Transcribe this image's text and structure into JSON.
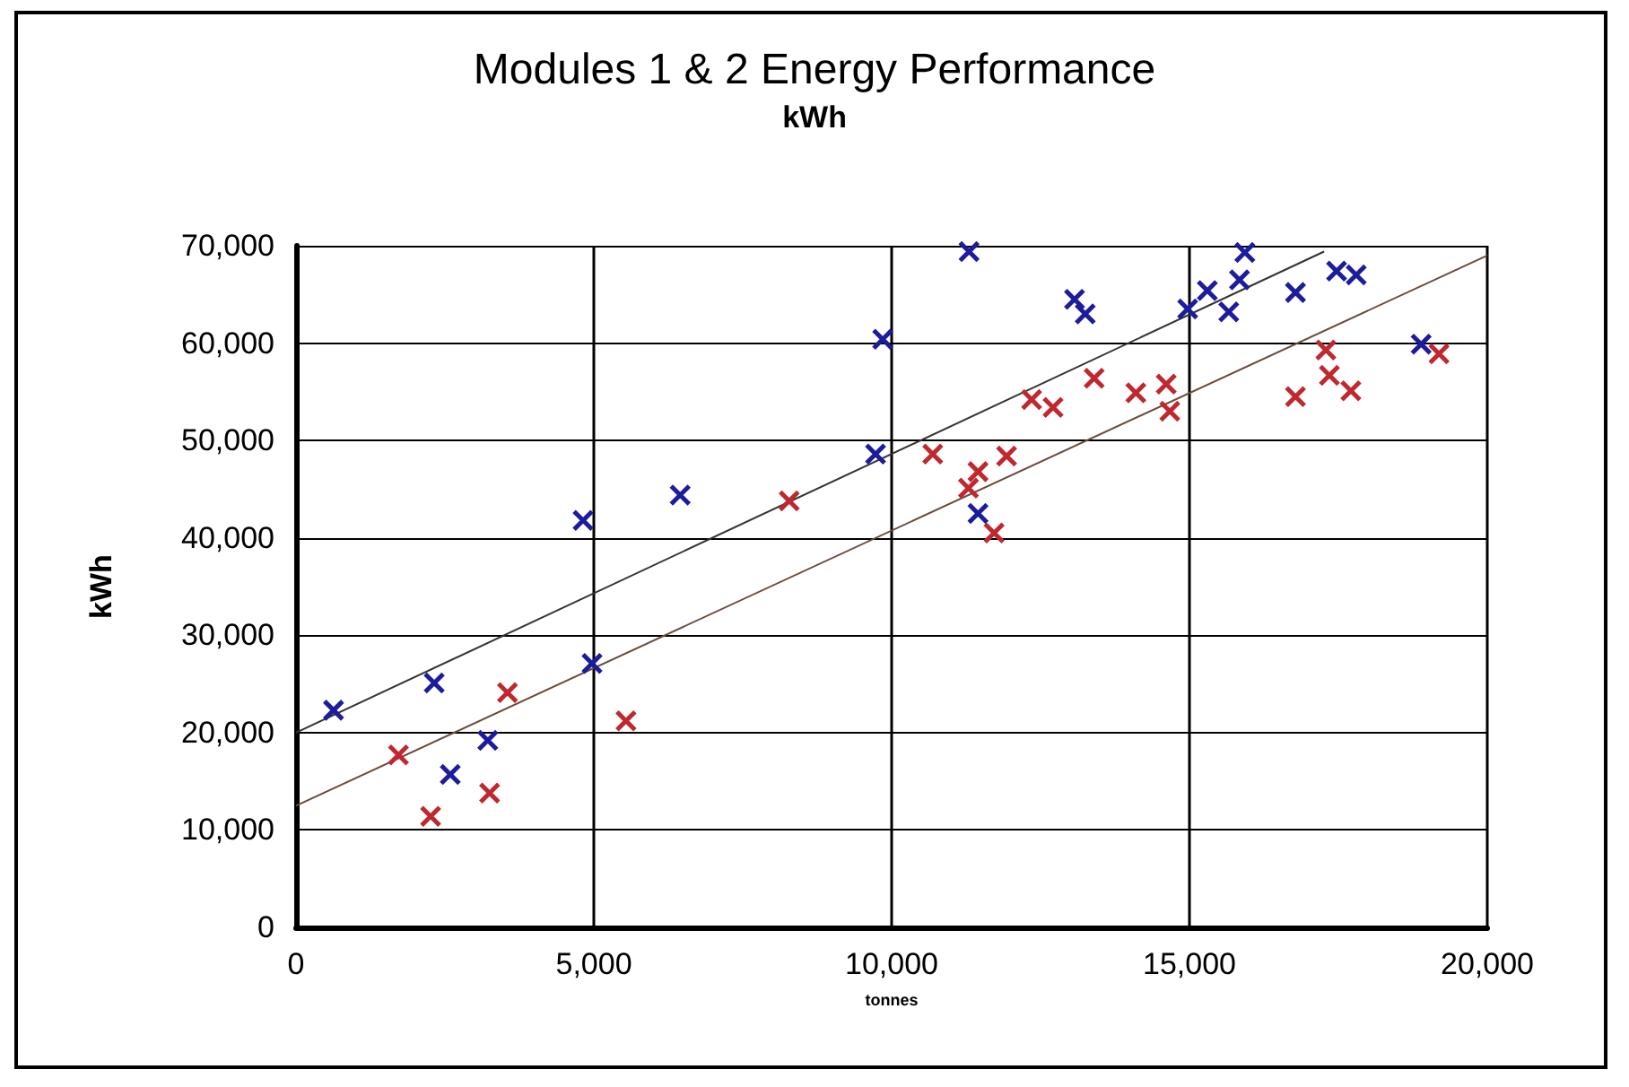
{
  "chart_data": {
    "type": "scatter",
    "title": "Modules 1 & 2 Energy Performance",
    "subtitle": "kWh",
    "xlabel": "tonnes",
    "ylabel": "kWh",
    "xlim": [
      0,
      20000
    ],
    "xticks": [
      0,
      {
        "value": 5000,
        "label": "5,000"
      },
      {
        "value": 10000,
        "label": "10,000"
      },
      {
        "value": 15000,
        "label": "15,000"
      },
      {
        "value": 20000,
        "label": "20,000"
      }
    ],
    "ylim": [
      0,
      70000
    ],
    "yticks": [
      0,
      {
        "value": 10000,
        "label": "10,000"
      },
      {
        "value": 20000,
        "label": "20,000"
      },
      {
        "value": 30000,
        "label": "30,000"
      },
      {
        "value": 40000,
        "label": "40,000"
      },
      {
        "value": 50000,
        "label": "50,000"
      },
      {
        "value": 60000,
        "label": "60,000"
      },
      {
        "value": 70000,
        "label": "70,000"
      }
    ],
    "grid": true,
    "marker": "cross",
    "series": [
      {
        "color": "#1c1c9c",
        "x": [
          630,
          2320,
          3220,
          2590,
          4820,
          4970,
          6450,
          9730,
          9850,
          11300,
          11450,
          13070,
          13250,
          14970,
          15300,
          15660,
          15840,
          15930,
          16780,
          17470,
          17800,
          18890
        ],
        "values": [
          22300,
          25100,
          19200,
          15700,
          41800,
          27100,
          44400,
          48600,
          60400,
          69400,
          42500,
          64500,
          63000,
          63500,
          65400,
          63200,
          66500,
          69300,
          65200,
          67400,
          67000,
          59900
        ]
      },
      {
        "color": "#c0282f",
        "x": [
          1720,
          2260,
          3250,
          3550,
          5540,
          8280,
          10690,
          11450,
          11930,
          11290,
          11720,
          12350,
          12710,
          13400,
          14100,
          14610,
          14670,
          16780,
          17290,
          17350,
          17710,
          19190
        ],
        "values": [
          17700,
          11400,
          13800,
          24100,
          21200,
          43800,
          48600,
          46800,
          48400,
          45100,
          40500,
          54200,
          53400,
          56400,
          54900,
          55800,
          53000,
          54500,
          59300,
          56700,
          55100,
          58900
        ]
      },
      {
        "type": "line",
        "color": "#333333",
        "marker": "none",
        "x": [
          0,
          17260
        ],
        "values": [
          20000,
          69400
        ]
      },
      {
        "type": "line",
        "color": "#6b4a3a",
        "marker": "none",
        "x": [
          0,
          20000
        ],
        "values": [
          12500,
          69000
        ]
      }
    ]
  }
}
